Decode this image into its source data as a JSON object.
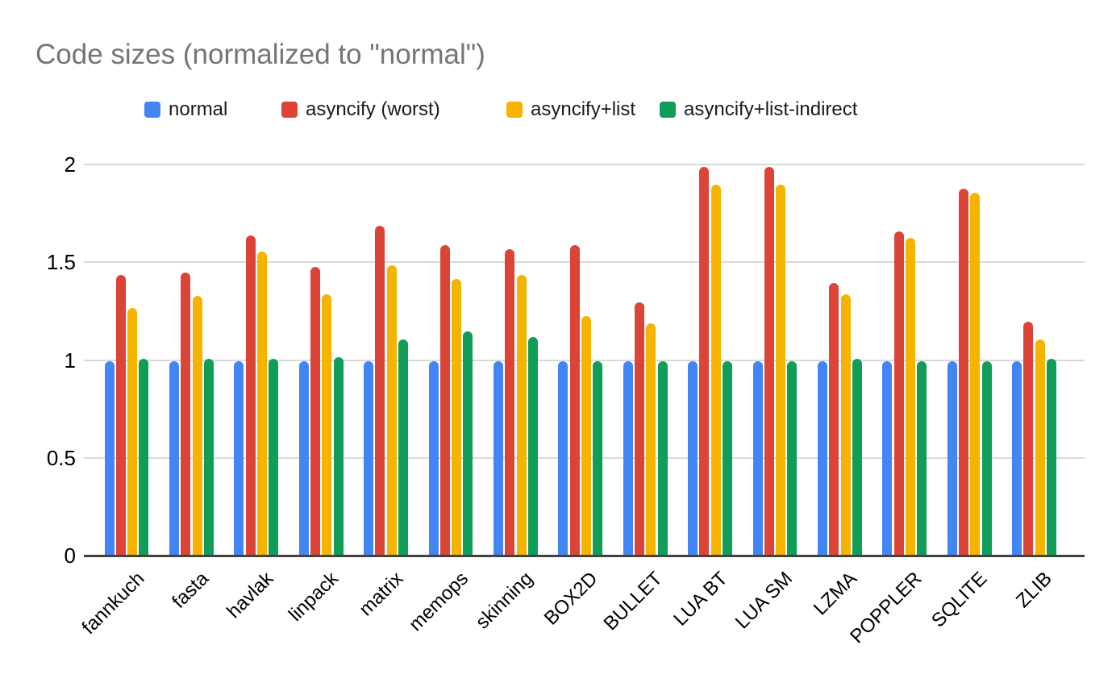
{
  "chart_data": {
    "type": "bar",
    "title": "Code sizes (normalized to \"normal\")",
    "xlabel": "",
    "ylabel": "",
    "categories": [
      "fannkuch",
      "fasta",
      "havlak",
      "linpack",
      "matrix",
      "memops",
      "skinning",
      "BOX2D",
      "BULLET",
      "LUA BT",
      "LUA SM",
      "LZMA",
      "POPPLER",
      "SQLITE",
      "ZLIB"
    ],
    "series": [
      {
        "name": "normal",
        "color": "#4285F4",
        "values": [
          1.0,
          1.0,
          1.0,
          1.0,
          1.0,
          1.0,
          1.0,
          1.0,
          1.0,
          1.0,
          1.0,
          1.0,
          1.0,
          1.0,
          1.0
        ]
      },
      {
        "name": "asyncify (worst)",
        "color": "#DB4437",
        "values": [
          1.44,
          1.45,
          1.64,
          1.48,
          1.69,
          1.59,
          1.57,
          1.59,
          1.3,
          1.99,
          1.99,
          1.4,
          1.66,
          1.88,
          1.2
        ]
      },
      {
        "name": "asyncify+list",
        "color": "#F4B400",
        "values": [
          1.27,
          1.33,
          1.56,
          1.34,
          1.49,
          1.42,
          1.44,
          1.23,
          1.19,
          1.9,
          1.9,
          1.34,
          1.63,
          1.86,
          1.11
        ]
      },
      {
        "name": "asyncify+list-indirect",
        "color": "#0F9D58",
        "values": [
          1.01,
          1.01,
          1.01,
          1.02,
          1.11,
          1.15,
          1.12,
          1.0,
          1.0,
          1.0,
          1.0,
          1.01,
          1.0,
          1.0,
          1.01
        ]
      }
    ],
    "ylim": [
      0,
      2
    ],
    "yticks": [
      "0",
      "0.5",
      "1",
      "1.5",
      "2"
    ],
    "grid": true,
    "legend_position": "top",
    "x_label_rotation_deg": 45
  },
  "palette": {
    "title_color": "#757575",
    "grid_color": "#d9d9d9",
    "axis_color": "#424242",
    "text_color": "#000000",
    "background": "#ffffff"
  }
}
